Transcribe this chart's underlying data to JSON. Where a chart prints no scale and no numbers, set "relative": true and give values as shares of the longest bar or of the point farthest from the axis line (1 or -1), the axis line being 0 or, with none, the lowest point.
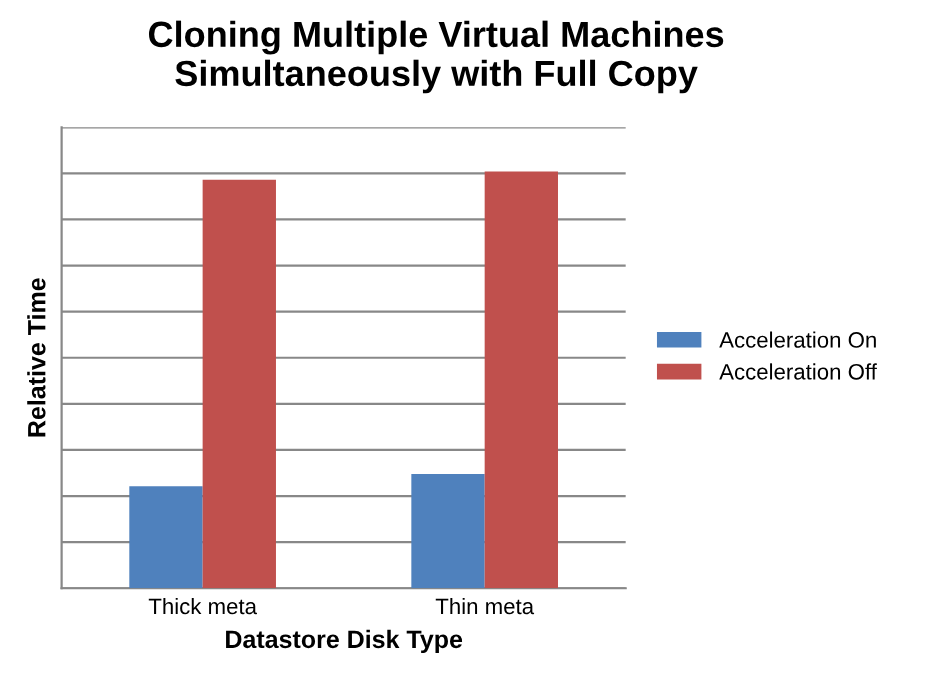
{
  "chart_data": {
    "type": "bar",
    "title": "Cloning Multiple Virtual Machines\nSimultaneously with Full Copy",
    "xlabel": "Datastore Disk Type",
    "ylabel": "Relative Time",
    "categories": [
      "Thick meta",
      "Thin meta"
    ],
    "relative": true,
    "grid": "y",
    "legend": "right",
    "series": [
      {
        "name": "Acceleration On",
        "color": "#4f81bd",
        "values": [
          0.245,
          0.274
        ]
      },
      {
        "name": "Acceleration Off",
        "color": "#c0504d",
        "values": [
          0.98,
          1
        ]
      }
    ]
  }
}
